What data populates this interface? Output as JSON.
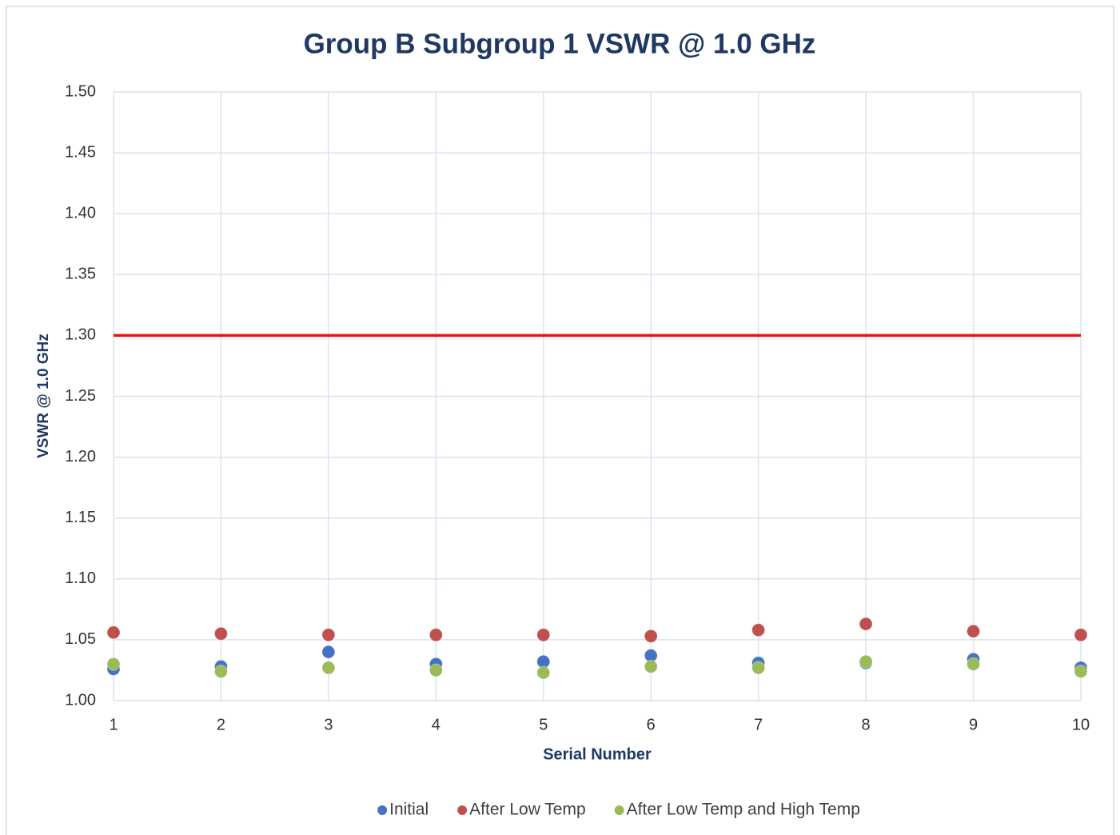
{
  "chart_data": {
    "type": "scatter",
    "title": "Group B Subgroup 1 VSWR @ 1.0 GHz",
    "x_label": "Serial Number",
    "y_label": "VSWR @ 1.0 GHz",
    "x": [
      1,
      2,
      3,
      4,
      5,
      6,
      7,
      8,
      9,
      10
    ],
    "series": [
      {
        "name": "Initial",
        "color": "#4472c4",
        "values": [
          1.026,
          1.028,
          1.04,
          1.03,
          1.032,
          1.037,
          1.031,
          1.031,
          1.034,
          1.027
        ]
      },
      {
        "name": "After Low Temp",
        "color": "#c0504d",
        "values": [
          1.056,
          1.055,
          1.054,
          1.054,
          1.054,
          1.053,
          1.058,
          1.063,
          1.057,
          1.054
        ]
      },
      {
        "name": "After Low Temp and High Temp",
        "color": "#9bbb59",
        "values": [
          1.03,
          1.024,
          1.027,
          1.025,
          1.023,
          1.028,
          1.027,
          1.032,
          1.03,
          1.024
        ]
      }
    ],
    "reference_line": {
      "value": 1.3,
      "color": "#ee1111"
    },
    "xlim": [
      1,
      10
    ],
    "xticks": [
      1,
      2,
      3,
      4,
      5,
      6,
      7,
      8,
      9,
      10
    ],
    "ylim": [
      1,
      1.5
    ],
    "yticks": [
      {
        "value": 1,
        "label": "1.00"
      },
      {
        "value": 1.05,
        "label": "1.05"
      },
      {
        "value": 1.1,
        "label": "1.10"
      },
      {
        "value": 1.15,
        "label": "1.15"
      },
      {
        "value": 1.2,
        "label": "1.20"
      },
      {
        "value": 1.25,
        "label": "1.25"
      },
      {
        "value": 1.3,
        "label": "1.30"
      },
      {
        "value": 1.35,
        "label": "1.35"
      },
      {
        "value": 1.4,
        "label": "1.40"
      },
      {
        "value": 1.45,
        "label": "1.45"
      },
      {
        "value": 1.5,
        "label": "1.50"
      }
    ],
    "grid": true,
    "legend": "bottom"
  }
}
